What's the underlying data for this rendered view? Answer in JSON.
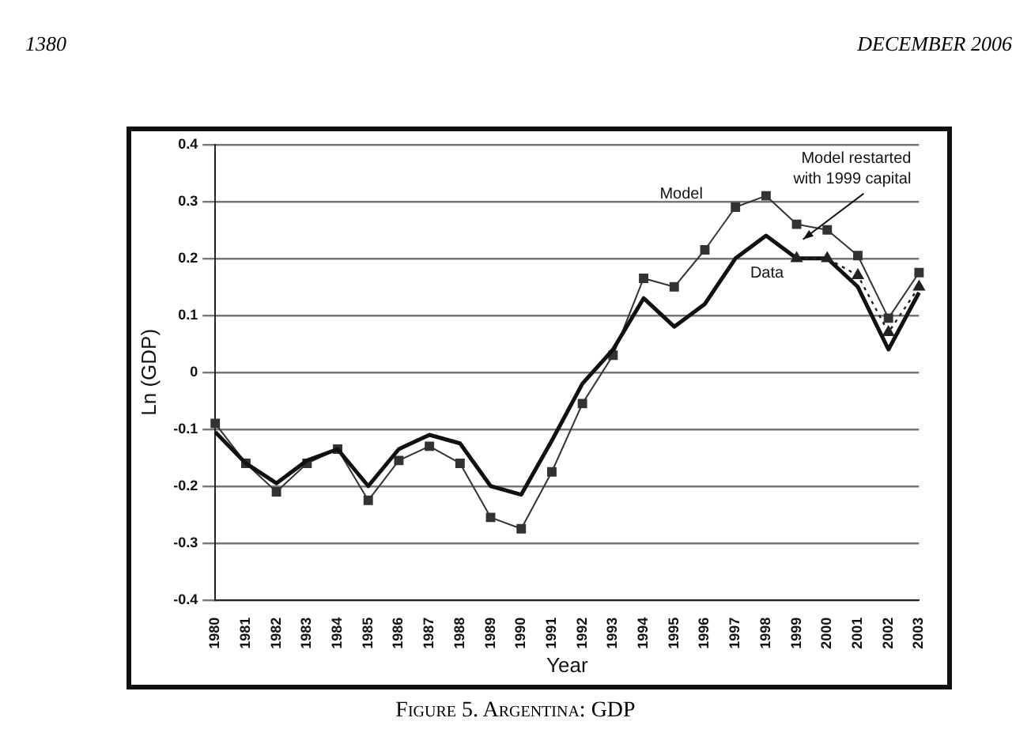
{
  "chart_data": {
    "type": "line",
    "title": "Figure 5. Argentina: GDP",
    "xlabel": "Year",
    "ylabel": "Ln (GDP)",
    "annotations": [
      "1380",
      "DECEMBER 2006"
    ],
    "categories": [
      "1980",
      "1981",
      "1982",
      "1983",
      "1984",
      "1985",
      "1986",
      "1987",
      "1988",
      "1989",
      "1990",
      "1991",
      "1992",
      "1993",
      "1994",
      "1995",
      "1996",
      "1997",
      "1998",
      "1999",
      "2000",
      "2001",
      "2002",
      "2003"
    ],
    "series": [
      {
        "name": "Model",
        "color": "#333333",
        "marker": "square",
        "line_style": "solid",
        "values": [
          -0.09,
          -0.16,
          -0.21,
          -0.16,
          -0.135,
          -0.225,
          -0.155,
          -0.13,
          -0.16,
          -0.255,
          -0.275,
          -0.175,
          -0.055,
          0.03,
          0.165,
          0.15,
          0.215,
          0.29,
          0.31,
          0.26,
          0.25,
          0.205,
          0.095,
          0.175
        ]
      },
      {
        "name": "Data",
        "color": "#111111",
        "marker": "none",
        "line_style": "solid",
        "values": [
          -0.105,
          -0.16,
          -0.195,
          -0.155,
          -0.135,
          -0.2,
          -0.135,
          -0.11,
          -0.125,
          -0.2,
          -0.215,
          -0.12,
          -0.02,
          0.04,
          0.13,
          0.08,
          0.12,
          0.2,
          0.24,
          0.2,
          0.2,
          0.15,
          0.04,
          0.14
        ]
      },
      {
        "name": "Model restarted with 1999 capital",
        "color": "#222222",
        "marker": "triangle",
        "line_style": "dotted",
        "values": [
          null,
          null,
          null,
          null,
          null,
          null,
          null,
          null,
          null,
          null,
          null,
          null,
          null,
          null,
          null,
          null,
          null,
          null,
          null,
          0.2,
          0.2,
          0.17,
          0.07,
          0.15
        ]
      }
    ],
    "ylim": [
      -0.4,
      0.4
    ],
    "yticks": [
      -0.4,
      -0.3,
      -0.2,
      -0.1,
      0,
      0.1,
      0.2,
      0.3,
      0.4
    ],
    "grid": "y",
    "legend": false
  }
}
